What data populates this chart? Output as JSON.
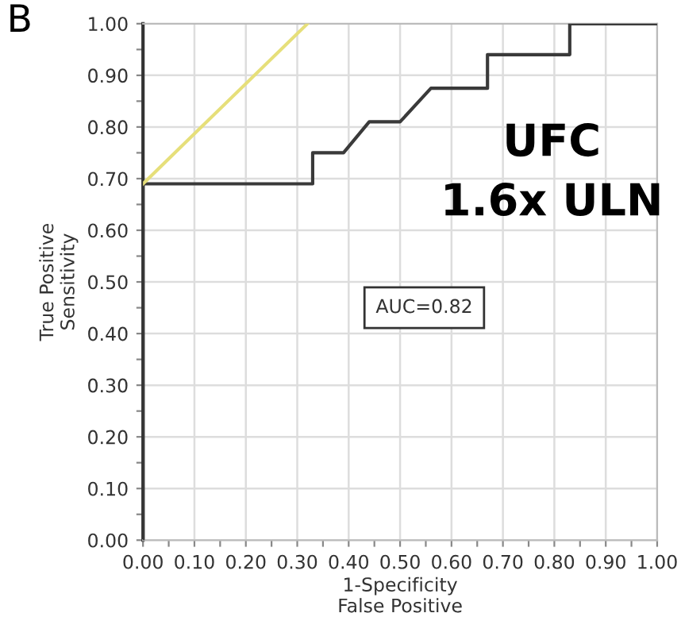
{
  "chart_data": {
    "type": "line",
    "title": "B",
    "xlabel": "1-Specificity\nFalse Positive",
    "ylabel": "True Positive\nSensitivity",
    "series": [
      {
        "color": "#3a3a3a",
        "x": [
          0,
          0,
          0.33,
          0.33,
          0.39,
          0.44,
          0.5,
          0.56,
          0.67,
          0.67,
          0.83,
          0.83,
          1.0
        ],
        "values": [
          0,
          0.69,
          0.69,
          0.75,
          0.75,
          0.81,
          0.81,
          0.875,
          0.875,
          0.94,
          0.94,
          1.0,
          1.0
        ]
      },
      {
        "color": "#e6df7a",
        "x": [
          0,
          0.32
        ],
        "values": [
          0.69,
          1.0
        ]
      }
    ],
    "annotations": [
      "UFC\n1.6x ULN",
      "AUC=0.82"
    ],
    "xlim": [
      0,
      1
    ],
    "ylim": [
      0,
      1
    ],
    "xticks": [
      {
        "value": 0,
        "label": "0.00"
      },
      {
        "value": 0.05,
        "label": null
      },
      {
        "value": 0.1,
        "label": "0.10"
      },
      {
        "value": 0.15,
        "label": null
      },
      {
        "value": 0.2,
        "label": "0.20"
      },
      {
        "value": 0.25,
        "label": null
      },
      {
        "value": 0.3,
        "label": "0.30"
      },
      {
        "value": 0.35,
        "label": null
      },
      {
        "value": 0.4,
        "label": "0.40"
      },
      {
        "value": 0.45,
        "label": null
      },
      {
        "value": 0.5,
        "label": "0.50"
      },
      {
        "value": 0.55,
        "label": null
      },
      {
        "value": 0.6,
        "label": "0.60"
      },
      {
        "value": 0.65,
        "label": null
      },
      {
        "value": 0.7,
        "label": "0.70"
      },
      {
        "value": 0.75,
        "label": null
      },
      {
        "value": 0.8,
        "label": "0.80"
      },
      {
        "value": 0.85,
        "label": null
      },
      {
        "value": 0.9,
        "label": "0.90"
      },
      {
        "value": 0.95,
        "label": null
      },
      {
        "value": 1,
        "label": "1.00"
      }
    ],
    "yticks": [
      {
        "value": 0,
        "label": "0.00"
      },
      {
        "value": 0.05,
        "label": null
      },
      {
        "value": 0.1,
        "label": "0.10"
      },
      {
        "value": 0.15,
        "label": null
      },
      {
        "value": 0.2,
        "label": "0.20"
      },
      {
        "value": 0.25,
        "label": null
      },
      {
        "value": 0.3,
        "label": "0.30"
      },
      {
        "value": 0.35,
        "label": null
      },
      {
        "value": 0.4,
        "label": "0.40"
      },
      {
        "value": 0.45,
        "label": null
      },
      {
        "value": 0.5,
        "label": "0.50"
      },
      {
        "value": 0.55,
        "label": null
      },
      {
        "value": 0.6,
        "label": "0.60"
      },
      {
        "value": 0.65,
        "label": null
      },
      {
        "value": 0.7,
        "label": "0.70"
      },
      {
        "value": 0.75,
        "label": null
      },
      {
        "value": 0.8,
        "label": "0.80"
      },
      {
        "value": 0.85,
        "label": null
      },
      {
        "value": 0.9,
        "label": "0.90"
      },
      {
        "value": 0.95,
        "label": null
      },
      {
        "value": 1,
        "label": "1.00"
      }
    ],
    "grid": true
  }
}
